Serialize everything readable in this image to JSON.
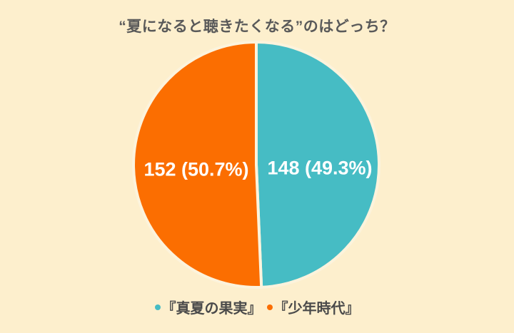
{
  "page": {
    "background": "#FDEFCD"
  },
  "chart_data": {
    "type": "pie",
    "title": "“夏になると聴きたくなる”のはどっち？",
    "slices": [
      {
        "label": "『真夏の果実』",
        "value": 148,
        "pct": 49.3,
        "display": "148 (49.3%)",
        "color": "#46BCC4"
      },
      {
        "label": "『少年時代』",
        "value": 152,
        "pct": 50.7,
        "display": "152 (50.7%)",
        "color": "#FB6E01"
      }
    ],
    "start_angle_deg": 0,
    "direction": "clockwise",
    "legend_position": "bottom",
    "slice_gap_color": "#FCF3DC",
    "label_color": "#FFFFFF",
    "title_color": "#595959",
    "legend_text_color": "#4A4A4A"
  }
}
